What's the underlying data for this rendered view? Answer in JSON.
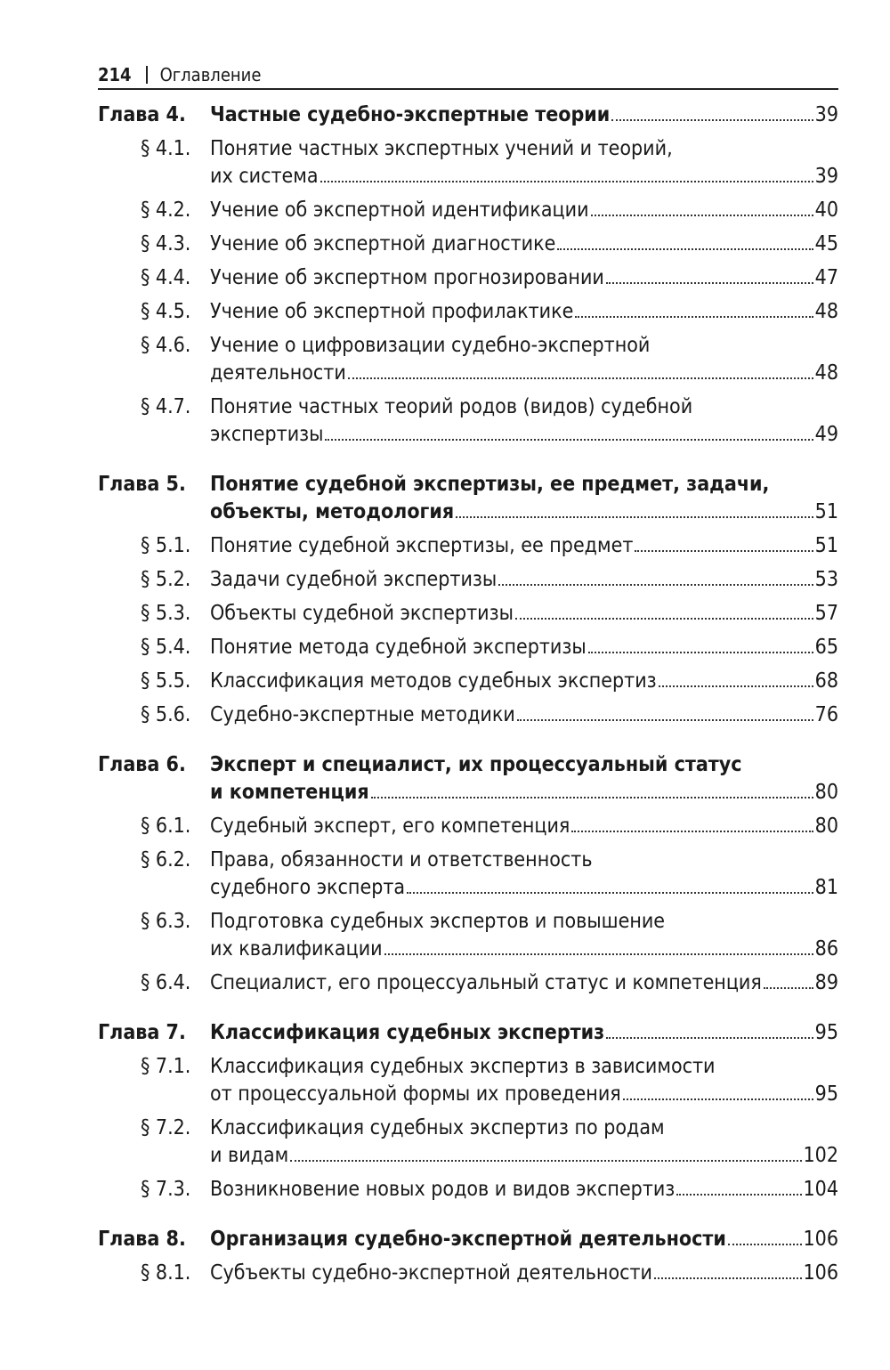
{
  "header": {
    "page_number": "214",
    "section": "Оглавление"
  },
  "entries": [
    {
      "type": "chapter",
      "label": "Глава 4.",
      "lines": [
        "Частные судебно-экспертные теории"
      ],
      "page": "39"
    },
    {
      "type": "sub",
      "label": "§ 4.1.",
      "lines": [
        "Понятие частных экспертных учений и теорий,",
        "их система"
      ],
      "page": "39"
    },
    {
      "type": "sub",
      "label": "§ 4.2.",
      "lines": [
        "Учение об экспертной идентификации"
      ],
      "page": "40"
    },
    {
      "type": "sub",
      "label": "§ 4.3.",
      "lines": [
        "Учение об экспертной диагностике"
      ],
      "page": "45"
    },
    {
      "type": "sub",
      "label": "§ 4.4.",
      "lines": [
        "Учение об экспертном прогнозировании"
      ],
      "page": "47"
    },
    {
      "type": "sub",
      "label": "§ 4.5.",
      "lines": [
        "Учение об экспертной профилактике"
      ],
      "page": "48"
    },
    {
      "type": "sub",
      "label": "§ 4.6.",
      "lines": [
        "Учение о цифровизации судебно-экспертной",
        "деятельности"
      ],
      "page": "48"
    },
    {
      "type": "sub",
      "label": "§ 4.7.",
      "lines": [
        "Понятие частных теорий родов (видов) судебной",
        "экспертизы"
      ],
      "page": "49"
    },
    {
      "type": "chapter",
      "label": "Глава 5.",
      "lines": [
        "Понятие судебной экспертизы, ее предмет, задачи,",
        "объекты, методология"
      ],
      "page": "51"
    },
    {
      "type": "sub",
      "label": "§ 5.1.",
      "lines": [
        "Понятие судебной экспертизы, ее предмет"
      ],
      "page": "51"
    },
    {
      "type": "sub",
      "label": "§ 5.2.",
      "lines": [
        "Задачи судебной экспертизы"
      ],
      "page": "53"
    },
    {
      "type": "sub",
      "label": "§ 5.3.",
      "lines": [
        "Объекты судебной экспертизы"
      ],
      "page": "57"
    },
    {
      "type": "sub",
      "label": "§ 5.4.",
      "lines": [
        "Понятие метода судебной экспертизы"
      ],
      "page": "65"
    },
    {
      "type": "sub",
      "label": "§ 5.5.",
      "lines": [
        "Классификация методов судебных экспертиз"
      ],
      "page": "68"
    },
    {
      "type": "sub",
      "label": "§ 5.6.",
      "lines": [
        "Судебно-экспертные методики"
      ],
      "page": "76"
    },
    {
      "type": "chapter",
      "label": "Глава 6.",
      "lines": [
        "Эксперт и специалист, их процессуальный статус",
        "и компетенция"
      ],
      "page": "80"
    },
    {
      "type": "sub",
      "label": "§ 6.1.",
      "lines": [
        "Судебный эксперт, его компетенция"
      ],
      "page": "80"
    },
    {
      "type": "sub",
      "label": "§ 6.2.",
      "lines": [
        "Права, обязанности и ответственность",
        "судебного эксперта"
      ],
      "page": "81"
    },
    {
      "type": "sub",
      "label": "§ 6.3.",
      "lines": [
        "Подготовка судебных экспертов и повышение",
        "их квалификации"
      ],
      "page": "86"
    },
    {
      "type": "sub",
      "label": "§ 6.4.",
      "lines": [
        "Специалист, его процессуальный статус и компетенция"
      ],
      "page": "89"
    },
    {
      "type": "chapter",
      "label": "Глава 7.",
      "lines": [
        "Классификация судебных экспертиз"
      ],
      "page": "95"
    },
    {
      "type": "sub",
      "label": "§ 7.1.",
      "lines": [
        "Классификация судебных экспертиз в зависимости",
        "от процессуальной формы их проведения"
      ],
      "page": "95"
    },
    {
      "type": "sub",
      "label": "§ 7.2.",
      "lines": [
        "Классификация судебных экспертиз по родам",
        "и видам"
      ],
      "page": "102"
    },
    {
      "type": "sub",
      "label": "§ 7.3.",
      "lines": [
        "Возникновение новых родов и видов экспертиз"
      ],
      "page": "104"
    },
    {
      "type": "chapter",
      "label": "Глава 8.",
      "lines": [
        "Организация судебно-экспертной деятельности"
      ],
      "page": "106"
    },
    {
      "type": "sub",
      "label": "§ 8.1.",
      "lines": [
        "Субъекты судебно-экспертной деятельности"
      ],
      "page": "106"
    }
  ]
}
